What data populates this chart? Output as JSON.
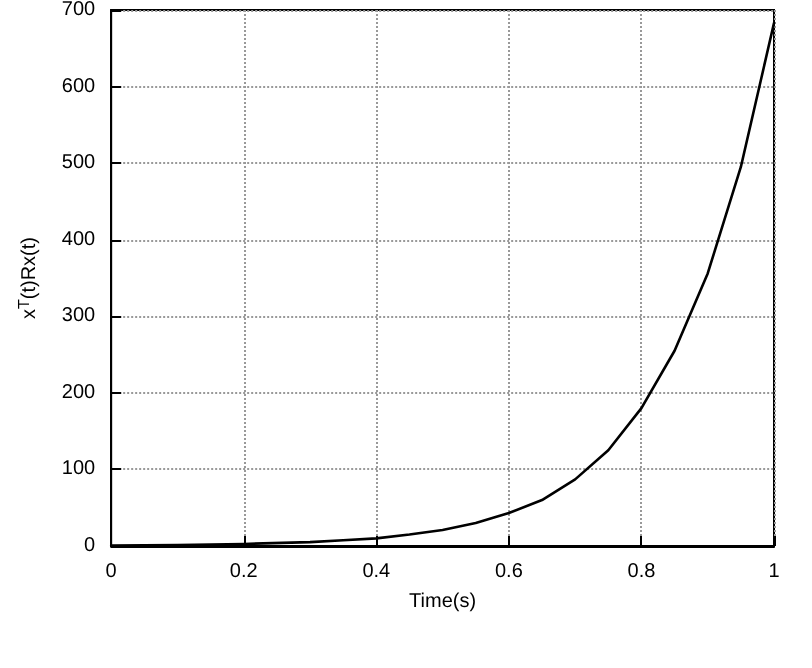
{
  "chart_data": {
    "type": "line",
    "xlabel": "Time(s)",
    "ylabel": "x$^{T}$(t)Rx(t)",
    "x": [
      0,
      0.1,
      0.2,
      0.3,
      0.35,
      0.4,
      0.45,
      0.5,
      0.55,
      0.6,
      0.65,
      0.7,
      0.75,
      0.8,
      0.85,
      0.9,
      0.95,
      1
    ],
    "series": [
      {
        "color": "#000000",
        "values": [
          0.7,
          1.3,
          2.7,
          5,
          7.5,
          10,
          15,
          21,
          30,
          43,
          60,
          87,
          125,
          180,
          255,
          356,
          495,
          683
        ]
      }
    ],
    "xlim": [
      0,
      1
    ],
    "xticks": [
      0,
      0.2,
      0.4,
      0.6,
      0.8,
      1
    ],
    "ylim": [
      0,
      700
    ],
    "yticks": [
      0,
      100,
      200,
      300,
      400,
      500,
      600,
      700
    ],
    "grid": true,
    "marker": "none",
    "line_style": "solid"
  }
}
